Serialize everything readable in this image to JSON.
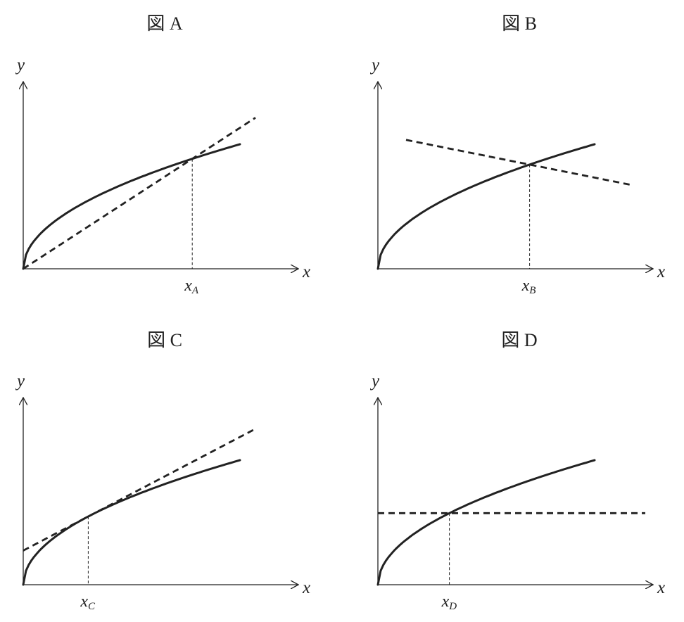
{
  "panels": [
    {
      "id": "A",
      "title": "図 A",
      "x_label": "x",
      "y_label": "y",
      "point_base": "x",
      "point_sub": "A",
      "line_kind": "ray-through-origin",
      "intersection_rel": 0.78
    },
    {
      "id": "B",
      "title": "図 B",
      "x_label": "x",
      "y_label": "y",
      "point_base": "x",
      "point_sub": "B",
      "line_kind": "decreasing-line",
      "intersection_rel": 0.7
    },
    {
      "id": "C",
      "title": "図 C",
      "x_label": "x",
      "y_label": "y",
      "point_base": "x",
      "point_sub": "C",
      "line_kind": "tangent-line",
      "intersection_rel": 0.3
    },
    {
      "id": "D",
      "title": "図 D",
      "x_label": "x",
      "y_label": "y",
      "point_base": "x",
      "point_sub": "D",
      "line_kind": "horizontal-line",
      "intersection_rel": 0.33
    }
  ]
}
